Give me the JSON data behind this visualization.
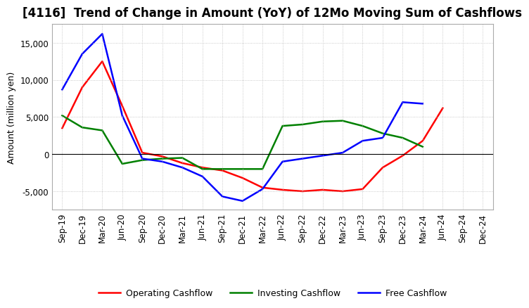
{
  "title": "[4116]  Trend of Change in Amount (YoY) of 12Mo Moving Sum of Cashflows",
  "ylabel": "Amount (million yen)",
  "x_labels": [
    "Sep-19",
    "Dec-19",
    "Mar-20",
    "Jun-20",
    "Sep-20",
    "Dec-20",
    "Mar-21",
    "Jun-21",
    "Sep-21",
    "Dec-21",
    "Mar-22",
    "Jun-22",
    "Sep-22",
    "Dec-22",
    "Mar-23",
    "Jun-23",
    "Sep-23",
    "Dec-23",
    "Mar-24",
    "Jun-24",
    "Sep-24",
    "Dec-24"
  ],
  "operating_cashflow": [
    3500,
    9000,
    12500,
    6500,
    200,
    -300,
    -1200,
    -1800,
    -2200,
    -3200,
    -4500,
    -4800,
    -5000,
    -4800,
    -5000,
    -4700,
    -1800,
    -200,
    1800,
    6200,
    null,
    null
  ],
  "investing_cashflow": [
    5200,
    3600,
    3200,
    -1300,
    -800,
    -600,
    -500,
    -2000,
    -2000,
    -2000,
    -2000,
    3800,
    4000,
    4400,
    4500,
    3800,
    2800,
    2200,
    1000,
    null,
    null,
    null
  ],
  "free_cashflow": [
    8700,
    13500,
    16200,
    5200,
    -600,
    -1000,
    -1800,
    -3000,
    -5700,
    -6300,
    -4700,
    -1000,
    -600,
    -200,
    200,
    1800,
    2200,
    7000,
    6800,
    null,
    null,
    null
  ],
  "ylim": [
    -7500,
    17500
  ],
  "yticks": [
    -5000,
    0,
    5000,
    10000,
    15000
  ],
  "operating_color": "#ff0000",
  "investing_color": "#008000",
  "free_color": "#0000ff",
  "background_color": "#ffffff",
  "grid_color": "#bbbbbb",
  "title_fontsize": 12,
  "label_fontsize": 9,
  "tick_fontsize": 8.5
}
